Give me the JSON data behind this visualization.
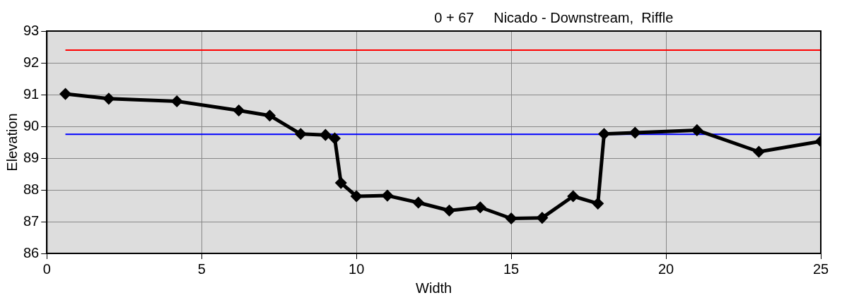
{
  "chart_data": {
    "type": "line",
    "title": "0 + 67     Nicado - Downstream,  Riffle",
    "xlabel": "Width",
    "ylabel": "Elevation",
    "xlim": [
      0,
      25
    ],
    "xticks": [
      0,
      5,
      10,
      15,
      20,
      25
    ],
    "ylim": [
      86,
      93
    ],
    "yticks": [
      86,
      87,
      88,
      89,
      90,
      91,
      92,
      93
    ],
    "grid": true,
    "legend": false,
    "marker": "diamond",
    "line_style": "solid",
    "series": [
      {
        "color": "#000000",
        "x": [
          0.6,
          2,
          4.2,
          6.2,
          7.2,
          8.2,
          9,
          9.3,
          9.5,
          10,
          11,
          12,
          13,
          14,
          15,
          16,
          17,
          17.8,
          18,
          19,
          21,
          23,
          25
        ],
        "values": [
          91.02,
          90.87,
          90.79,
          90.5,
          90.34,
          89.76,
          89.73,
          89.62,
          88.22,
          87.8,
          87.82,
          87.6,
          87.35,
          87.45,
          87.1,
          87.12,
          87.8,
          87.57,
          89.76,
          89.8,
          89.88,
          89.2,
          89.53
        ]
      },
      {
        "color": "#ff0000",
        "marker": "none",
        "x": [
          0.6,
          25
        ],
        "values": [
          92.4,
          92.4
        ]
      },
      {
        "color": "#0000ff",
        "marker": "none",
        "x": [
          0.6,
          25
        ],
        "values": [
          89.75,
          89.75
        ]
      }
    ]
  }
}
